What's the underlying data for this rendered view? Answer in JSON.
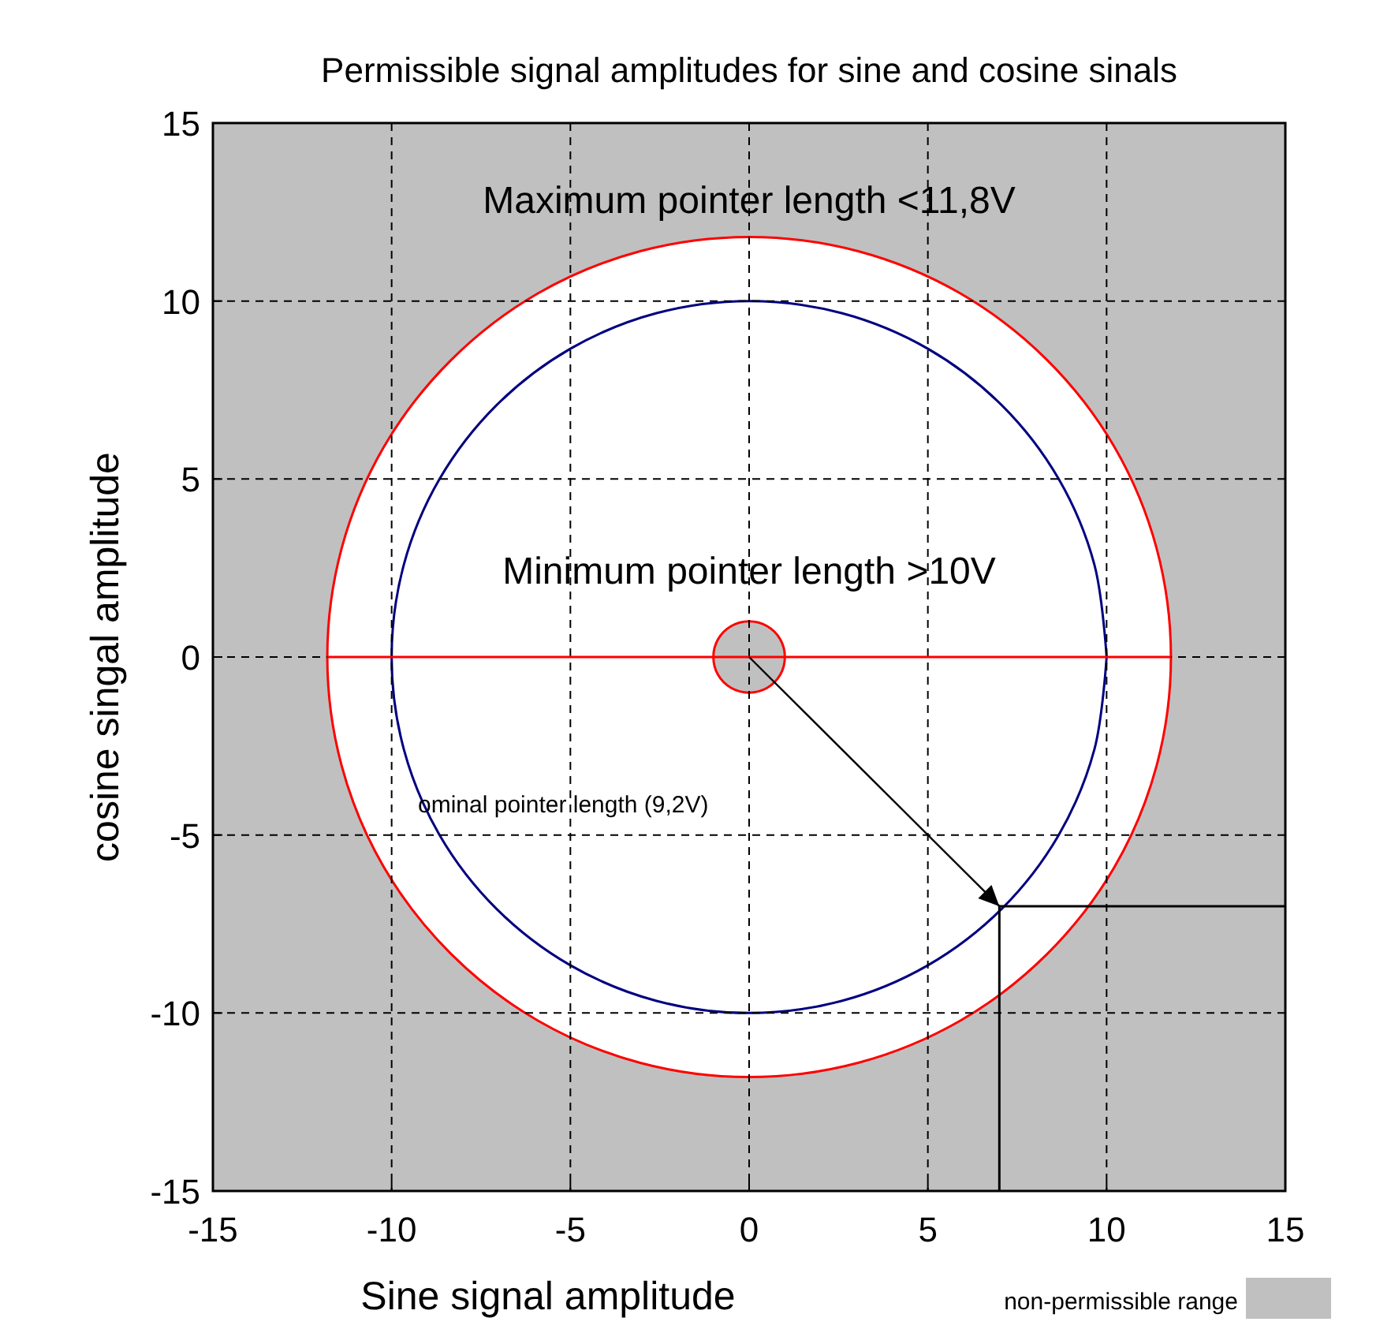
{
  "chart_data": {
    "type": "line",
    "title": "Permissible signal amplitudes for sine and cosine sinals",
    "xlabel": "Sine signal amplitude",
    "ylabel": "cosine singal amplitude",
    "xlim": [
      -15,
      15
    ],
    "ylim": [
      -15,
      15
    ],
    "xticks": [
      -15,
      -10,
      -5,
      0,
      5,
      10,
      15
    ],
    "yticks": [
      -15,
      -10,
      -5,
      0,
      5,
      10,
      15
    ],
    "grid": true,
    "line_style": "solid",
    "marker": "none",
    "bands": [
      {
        "axis": "y",
        "from": -15,
        "to": 15,
        "label": "non-permissible range",
        "color": "#c0c0c0"
      }
    ],
    "series": [
      {
        "type": "area",
        "color": "#ff0000",
        "x": [
          11.8,
          11.4,
          10.22,
          8.34,
          5.9,
          3.05,
          0,
          -3.05,
          -5.9,
          -8.34,
          -10.22,
          -11.4,
          -11.8,
          -11.4,
          -10.22,
          -8.34,
          -5.9,
          -3.05,
          0,
          3.05,
          5.9,
          8.34,
          10.22,
          11.4
        ],
        "values": [
          0,
          3.05,
          5.9,
          8.34,
          10.22,
          11.4,
          11.8,
          11.4,
          10.22,
          8.34,
          5.9,
          3.05,
          0,
          -3.05,
          -5.9,
          -8.34,
          -10.22,
          -11.4,
          -11.8,
          -11.4,
          -10.22,
          -8.34,
          -5.9,
          -3.05
        ]
      },
      {
        "type": "area",
        "color": "#000080",
        "x": [
          10,
          9.66,
          8.66,
          7.07,
          5,
          2.59,
          0,
          -2.59,
          -5,
          -7.07,
          -8.66,
          -9.66,
          -10,
          -9.66,
          -8.66,
          -7.07,
          -5,
          -2.59,
          0,
          2.59,
          5,
          7.07,
          8.66,
          9.66,
          10
        ],
        "values": [
          0,
          2.59,
          5,
          7.07,
          8.66,
          9.66,
          10,
          9.66,
          8.66,
          7.07,
          5,
          2.59,
          0,
          -2.59,
          -5,
          -7.07,
          -8.66,
          -9.66,
          -10,
          -9.66,
          -8.66,
          -7.07,
          -5,
          -2.59,
          0
        ]
      },
      {
        "type": "line",
        "color": "#ff0000",
        "x": [
          -11.8,
          -1,
          1,
          11.8
        ],
        "values": [
          0,
          0,
          0,
          0
        ]
      },
      {
        "type": "area",
        "color": "#ff0000",
        "x": [
          1,
          0.87,
          0.5,
          0,
          -0.5,
          -0.87,
          -1,
          -0.87,
          -0.5,
          0,
          0.5,
          0.87
        ],
        "values": [
          0,
          0.5,
          0.87,
          1,
          0.87,
          0.5,
          0,
          -0.5,
          -0.87,
          -1,
          -0.87,
          -0.5
        ]
      },
      {
        "color": "#000000",
        "x": [
          15,
          7,
          7
        ],
        "values": [
          -7,
          -7,
          -15
        ]
      }
    ],
    "annotations": [
      "Maximum pointer length <11,8V",
      "Minimum pointer length >10V",
      "ominal  pointer length (9,2V)"
    ],
    "legend": "bottom right"
  }
}
